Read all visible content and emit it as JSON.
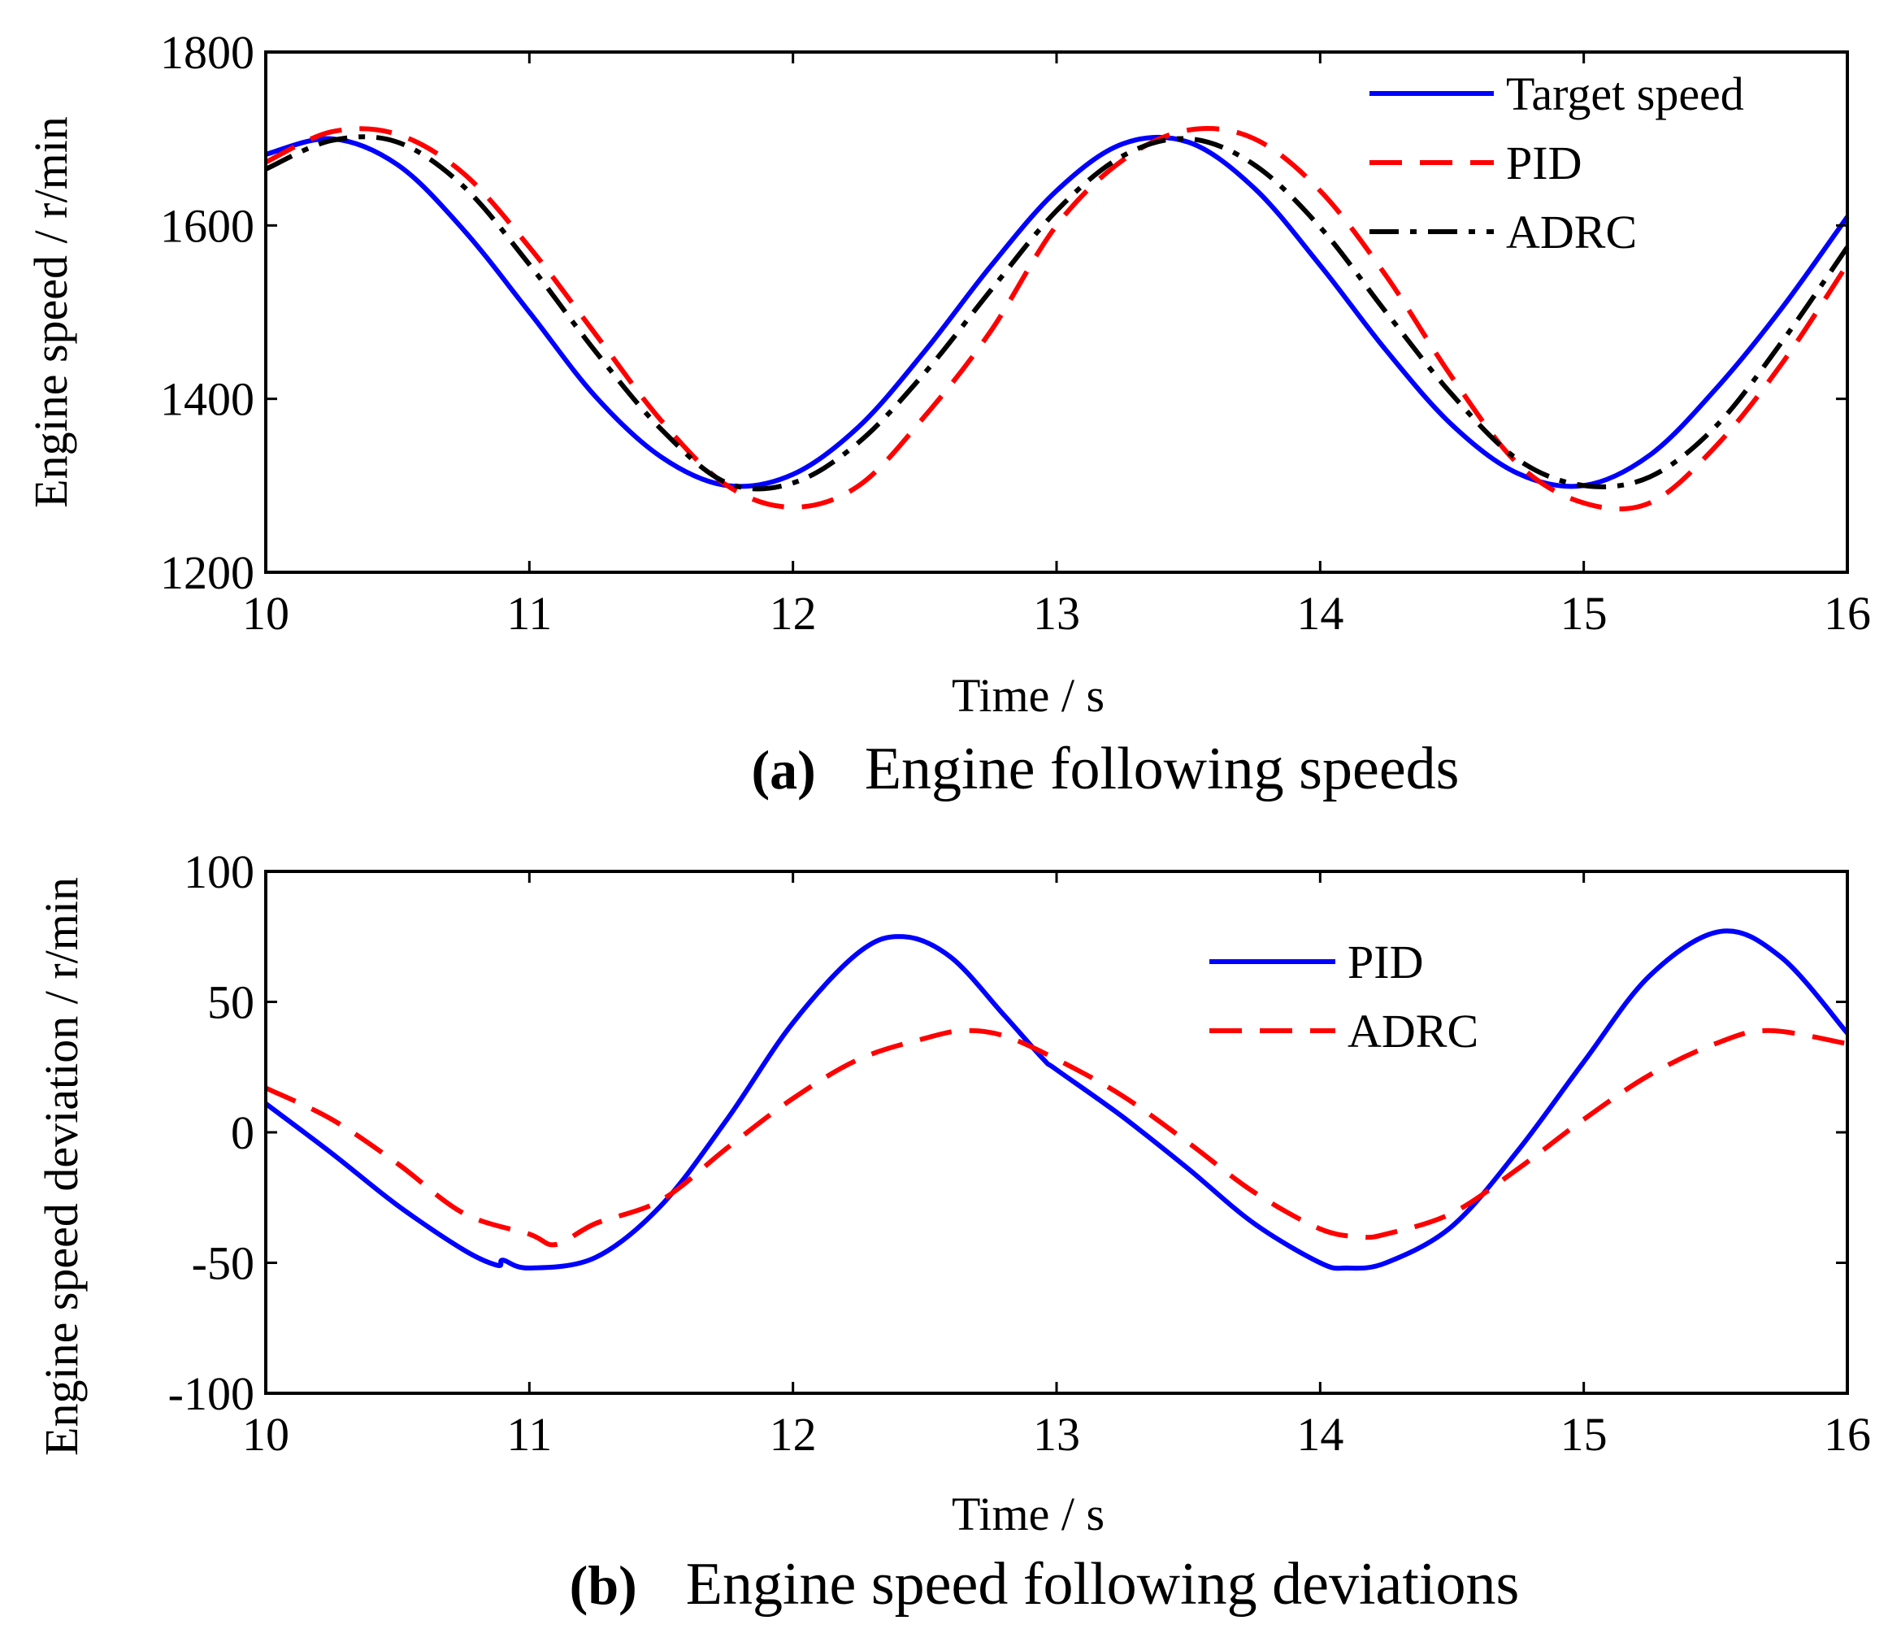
{
  "chart_data": [
    {
      "type": "line",
      "panel": "a",
      "caption_label": "(a)",
      "caption_text": "Engine following speeds",
      "xlabel": "Time / s",
      "ylabel": "Engine speed / r/min",
      "xlim": [
        10,
        16
      ],
      "ylim": [
        1200,
        1800
      ],
      "xticks": [
        "10",
        "11",
        "12",
        "13",
        "14",
        "15",
        "16"
      ],
      "yticks": [
        "1200",
        "1400",
        "1600",
        "1800"
      ],
      "grid": false,
      "legend_position": "top-right",
      "series": [
        {
          "name": "Target speed",
          "color": "#0000ff",
          "style": "solid",
          "x": [
            10.0,
            10.25,
            10.5,
            10.75,
            11.0,
            11.25,
            11.5,
            11.75,
            12.0,
            12.25,
            12.5,
            12.75,
            13.0,
            13.25,
            13.5,
            13.75,
            14.0,
            14.25,
            14.5,
            14.75,
            15.0,
            15.25,
            15.5,
            15.75,
            16.0
          ],
          "y": [
            1682,
            1700,
            1670,
            1595,
            1500,
            1403,
            1333,
            1300,
            1313,
            1368,
            1455,
            1553,
            1640,
            1694,
            1696,
            1643,
            1554,
            1456,
            1370,
            1314,
            1300,
            1335,
            1411,
            1504,
            1610
          ]
        },
        {
          "name": "PID",
          "color": "#ff0000",
          "style": "dashed",
          "x": [
            10.0,
            10.25,
            10.5,
            10.75,
            11.0,
            11.25,
            11.5,
            11.75,
            12.0,
            12.25,
            12.5,
            12.75,
            13.0,
            13.25,
            13.5,
            13.75,
            14.0,
            14.25,
            14.5,
            14.75,
            15.0,
            15.25,
            15.5,
            15.75,
            16.0
          ],
          "y": [
            1673,
            1708,
            1705,
            1660,
            1575,
            1475,
            1375,
            1300,
            1275,
            1300,
            1380,
            1478,
            1600,
            1675,
            1710,
            1700,
            1640,
            1542,
            1425,
            1325,
            1280,
            1280,
            1345,
            1440,
            1555
          ]
        },
        {
          "name": "ADRC",
          "color": "#000000",
          "style": "dashdot",
          "x": [
            10.0,
            10.25,
            10.5,
            10.75,
            11.0,
            11.25,
            11.5,
            11.75,
            12.0,
            12.25,
            12.5,
            12.75,
            13.0,
            13.25,
            13.5,
            13.75,
            14.0,
            14.25,
            14.5,
            14.75,
            15.0,
            15.25,
            15.5,
            15.75,
            16.0
          ],
          "y": [
            1665,
            1698,
            1696,
            1645,
            1555,
            1455,
            1365,
            1303,
            1303,
            1350,
            1430,
            1525,
            1617,
            1680,
            1700,
            1670,
            1598,
            1500,
            1405,
            1330,
            1300,
            1310,
            1368,
            1465,
            1575
          ]
        }
      ]
    },
    {
      "type": "line",
      "panel": "b",
      "caption_label": "(b)",
      "caption_text": "Engine speed following deviations",
      "xlabel": "Time / s",
      "ylabel": "Engine speed deviation / r/min",
      "xlim": [
        10,
        16
      ],
      "ylim": [
        -100,
        100
      ],
      "xticks": [
        "10",
        "11",
        "12",
        "13",
        "14",
        "15",
        "16"
      ],
      "yticks": [
        "-100",
        "-50",
        "0",
        "50",
        "100"
      ],
      "grid": false,
      "legend_position": "top-right",
      "series": [
        {
          "name": "PID",
          "color": "#0000ff",
          "style": "solid",
          "x": [
            10.0,
            10.25,
            10.5,
            10.75,
            10.88,
            10.9,
            11.0,
            11.25,
            11.5,
            11.75,
            12.0,
            12.25,
            12.42,
            12.6,
            12.8,
            12.95,
            13.0,
            13.25,
            13.5,
            13.75,
            14.0,
            14.1,
            14.25,
            14.5,
            14.75,
            15.0,
            15.25,
            15.52,
            15.75,
            16.0
          ],
          "y": [
            11,
            -8,
            -28,
            -45,
            -51,
            -49,
            -52,
            -48,
            -28,
            5,
            42,
            69,
            75,
            67,
            45,
            28,
            24,
            6,
            -14,
            -35,
            -50,
            -52,
            -50,
            -36,
            -7,
            27,
            60,
            77,
            67,
            38
          ]
        },
        {
          "name": "ADRC",
          "color": "#ff0000",
          "style": "dashed",
          "x": [
            10.0,
            10.25,
            10.5,
            10.75,
            11.0,
            11.1,
            11.25,
            11.5,
            11.75,
            12.0,
            12.25,
            12.5,
            12.65,
            12.8,
            13.0,
            13.25,
            13.5,
            13.75,
            14.0,
            14.15,
            14.25,
            14.5,
            14.75,
            15.0,
            15.25,
            15.5,
            15.7,
            16.0
          ],
          "y": [
            17,
            5,
            -12,
            -31,
            -39,
            -43,
            -35,
            -26,
            -6,
            13,
            28,
            36,
            39,
            37,
            28,
            14,
            -4,
            -23,
            -37,
            -40,
            -39,
            -31,
            -14,
            5,
            22,
            34,
            39,
            34
          ]
        }
      ]
    }
  ]
}
